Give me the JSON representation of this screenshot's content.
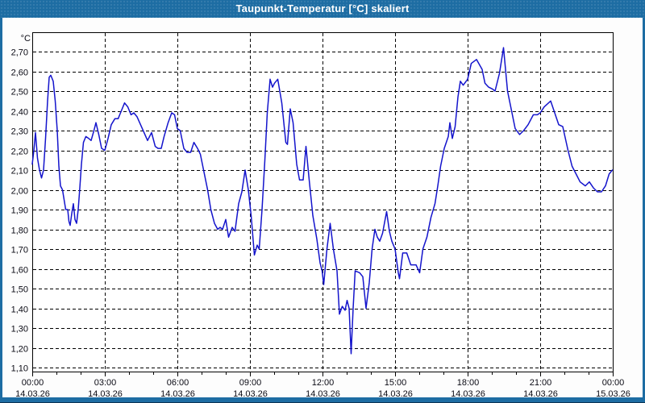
{
  "window": {
    "title": "Taupunkt-Temperatur [°C] skaliert"
  },
  "colors": {
    "frame_blue": "#1d6da3",
    "line_blue": "#1414cc",
    "grid_black": "#000000",
    "plot_background": "#ffffff",
    "label_text": "#0a0a14"
  },
  "chart_data": {
    "type": "line",
    "title": "Taupunkt-Temperatur [°C] skaliert",
    "ylabel": "°C",
    "xlabel": "",
    "ylim": [
      1.1,
      2.7
    ],
    "grid": "dashed",
    "legend": "none",
    "y_ticks": [
      {
        "value": 2.7,
        "label": "2,70"
      },
      {
        "value": 2.6,
        "label": "2,60"
      },
      {
        "value": 2.5,
        "label": "2,50"
      },
      {
        "value": 2.4,
        "label": "2,40"
      },
      {
        "value": 2.3,
        "label": "2,30"
      },
      {
        "value": 2.2,
        "label": "2,20"
      },
      {
        "value": 2.1,
        "label": "2,10"
      },
      {
        "value": 2.0,
        "label": "2,00"
      },
      {
        "value": 1.9,
        "label": "1,90"
      },
      {
        "value": 1.8,
        "label": "1,80"
      },
      {
        "value": 1.7,
        "label": "1,70"
      },
      {
        "value": 1.6,
        "label": "1,60"
      },
      {
        "value": 1.5,
        "label": "1,50"
      },
      {
        "value": 1.4,
        "label": "1,40"
      },
      {
        "value": 1.3,
        "label": "1,30"
      },
      {
        "value": 1.2,
        "label": "1,20"
      },
      {
        "value": 1.1,
        "label": "1,10"
      }
    ],
    "x_ticks": [
      {
        "hour": 0,
        "time": "00:00",
        "date": "14.03.26"
      },
      {
        "hour": 3,
        "time": "03:00",
        "date": "14.03.26"
      },
      {
        "hour": 6,
        "time": "06:00",
        "date": "14.03.26"
      },
      {
        "hour": 9,
        "time": "09:00",
        "date": "14.03.26"
      },
      {
        "hour": 12,
        "time": "12:00",
        "date": "14.03.26"
      },
      {
        "hour": 15,
        "time": "15:00",
        "date": "14.03.26"
      },
      {
        "hour": 18,
        "time": "18:00",
        "date": "14.03.26"
      },
      {
        "hour": 21,
        "time": "21:00",
        "date": "14.03.26"
      },
      {
        "hour": 24,
        "time": "00:00",
        "date": "15.03.26"
      }
    ],
    "minor_x_tick_every_hours": 1,
    "series": [
      {
        "name": "Taupunkt-Temperatur [°C] skaliert",
        "color": "#1414cc",
        "x_unit": "minutes_since_00:00_14.03.26",
        "points": [
          [
            0,
            2.13
          ],
          [
            4,
            2.2
          ],
          [
            8,
            2.29
          ],
          [
            13,
            2.16
          ],
          [
            18,
            2.1
          ],
          [
            23,
            2.06
          ],
          [
            28,
            2.1
          ],
          [
            33,
            2.26
          ],
          [
            38,
            2.45
          ],
          [
            42,
            2.57
          ],
          [
            46,
            2.58
          ],
          [
            52,
            2.55
          ],
          [
            57,
            2.45
          ],
          [
            62,
            2.3
          ],
          [
            66,
            2.12
          ],
          [
            70,
            2.02
          ],
          [
            75,
            2.0
          ],
          [
            79,
            1.95
          ],
          [
            83,
            1.9
          ],
          [
            88,
            1.9
          ],
          [
            91,
            1.84
          ],
          [
            94,
            1.82
          ],
          [
            98,
            1.88
          ],
          [
            102,
            1.93
          ],
          [
            106,
            1.85
          ],
          [
            110,
            1.83
          ],
          [
            114,
            1.9
          ],
          [
            118,
            2.01
          ],
          [
            122,
            2.13
          ],
          [
            127,
            2.24
          ],
          [
            133,
            2.27
          ],
          [
            140,
            2.26
          ],
          [
            146,
            2.25
          ],
          [
            153,
            2.3
          ],
          [
            158,
            2.34
          ],
          [
            165,
            2.28
          ],
          [
            172,
            2.21
          ],
          [
            180,
            2.2
          ],
          [
            188,
            2.26
          ],
          [
            196,
            2.33
          ],
          [
            205,
            2.36
          ],
          [
            213,
            2.36
          ],
          [
            221,
            2.4
          ],
          [
            229,
            2.44
          ],
          [
            237,
            2.42
          ],
          [
            245,
            2.38
          ],
          [
            252,
            2.39
          ],
          [
            260,
            2.37
          ],
          [
            273,
            2.31
          ],
          [
            286,
            2.25
          ],
          [
            296,
            2.29
          ],
          [
            305,
            2.22
          ],
          [
            312,
            2.21
          ],
          [
            320,
            2.21
          ],
          [
            327,
            2.27
          ],
          [
            337,
            2.34
          ],
          [
            346,
            2.39
          ],
          [
            353,
            2.38
          ],
          [
            360,
            2.31
          ],
          [
            367,
            2.3
          ],
          [
            376,
            2.21
          ],
          [
            384,
            2.19
          ],
          [
            393,
            2.19
          ],
          [
            401,
            2.24
          ],
          [
            410,
            2.21
          ],
          [
            417,
            2.18
          ],
          [
            427,
            2.08
          ],
          [
            435,
            2.0
          ],
          [
            443,
            1.9
          ],
          [
            452,
            1.83
          ],
          [
            460,
            1.8
          ],
          [
            466,
            1.81
          ],
          [
            472,
            1.8
          ],
          [
            480,
            1.85
          ],
          [
            487,
            1.76
          ],
          [
            496,
            1.81
          ],
          [
            503,
            1.79
          ],
          [
            512,
            1.93
          ],
          [
            520,
            1.99
          ],
          [
            528,
            2.1
          ],
          [
            536,
            2.0
          ],
          [
            543,
            1.87
          ],
          [
            551,
            1.67
          ],
          [
            558,
            1.72
          ],
          [
            563,
            1.7
          ],
          [
            570,
            1.9
          ],
          [
            577,
            2.15
          ],
          [
            583,
            2.39
          ],
          [
            590,
            2.56
          ],
          [
            596,
            2.52
          ],
          [
            601,
            2.54
          ],
          [
            609,
            2.56
          ],
          [
            619,
            2.44
          ],
          [
            629,
            2.24
          ],
          [
            633,
            2.23
          ],
          [
            640,
            2.41
          ],
          [
            647,
            2.34
          ],
          [
            656,
            2.13
          ],
          [
            663,
            2.05
          ],
          [
            672,
            2.05
          ],
          [
            679,
            2.22
          ],
          [
            687,
            2.05
          ],
          [
            696,
            1.87
          ],
          [
            706,
            1.75
          ],
          [
            714,
            1.63
          ],
          [
            719,
            1.59
          ],
          [
            723,
            1.52
          ],
          [
            731,
            1.7
          ],
          [
            739,
            1.83
          ],
          [
            747,
            1.7
          ],
          [
            756,
            1.59
          ],
          [
            762,
            1.37
          ],
          [
            769,
            1.41
          ],
          [
            776,
            1.39
          ],
          [
            781,
            1.44
          ],
          [
            786,
            1.4
          ],
          [
            791,
            1.17
          ],
          [
            796,
            1.4
          ],
          [
            801,
            1.59
          ],
          [
            812,
            1.58
          ],
          [
            820,
            1.56
          ],
          [
            828,
            1.4
          ],
          [
            836,
            1.53
          ],
          [
            843,
            1.7
          ],
          [
            850,
            1.8
          ],
          [
            856,
            1.76
          ],
          [
            862,
            1.74
          ],
          [
            869,
            1.78
          ],
          [
            879,
            1.89
          ],
          [
            886,
            1.79
          ],
          [
            892,
            1.74
          ],
          [
            900,
            1.7
          ],
          [
            908,
            1.58
          ],
          [
            911,
            1.55
          ],
          [
            919,
            1.68
          ],
          [
            929,
            1.68
          ],
          [
            939,
            1.62
          ],
          [
            952,
            1.62
          ],
          [
            961,
            1.58
          ],
          [
            969,
            1.7
          ],
          [
            979,
            1.76
          ],
          [
            989,
            1.86
          ],
          [
            999,
            1.93
          ],
          [
            1006,
            2.02
          ],
          [
            1013,
            2.12
          ],
          [
            1022,
            2.21
          ],
          [
            1032,
            2.27
          ],
          [
            1036,
            2.34
          ],
          [
            1042,
            2.26
          ],
          [
            1049,
            2.32
          ],
          [
            1056,
            2.47
          ],
          [
            1062,
            2.55
          ],
          [
            1069,
            2.53
          ],
          [
            1080,
            2.56
          ],
          [
            1089,
            2.64
          ],
          [
            1102,
            2.66
          ],
          [
            1116,
            2.61
          ],
          [
            1123,
            2.54
          ],
          [
            1132,
            2.52
          ],
          [
            1142,
            2.51
          ],
          [
            1148,
            2.5
          ],
          [
            1159,
            2.59
          ],
          [
            1169,
            2.72
          ],
          [
            1179,
            2.5
          ],
          [
            1189,
            2.4
          ],
          [
            1198,
            2.31
          ],
          [
            1209,
            2.28
          ],
          [
            1219,
            2.3
          ],
          [
            1230,
            2.33
          ],
          [
            1243,
            2.38
          ],
          [
            1253,
            2.38
          ],
          [
            1260,
            2.39
          ],
          [
            1270,
            2.42
          ],
          [
            1286,
            2.45
          ],
          [
            1296,
            2.39
          ],
          [
            1306,
            2.33
          ],
          [
            1316,
            2.32
          ],
          [
            1329,
            2.2
          ],
          [
            1339,
            2.12
          ],
          [
            1349,
            2.08
          ],
          [
            1359,
            2.04
          ],
          [
            1372,
            2.02
          ],
          [
            1382,
            2.04
          ],
          [
            1392,
            2.01
          ],
          [
            1402,
            1.99
          ],
          [
            1412,
            1.99
          ],
          [
            1422,
            2.02
          ],
          [
            1431,
            2.08
          ],
          [
            1439,
            2.1
          ]
        ]
      }
    ]
  }
}
